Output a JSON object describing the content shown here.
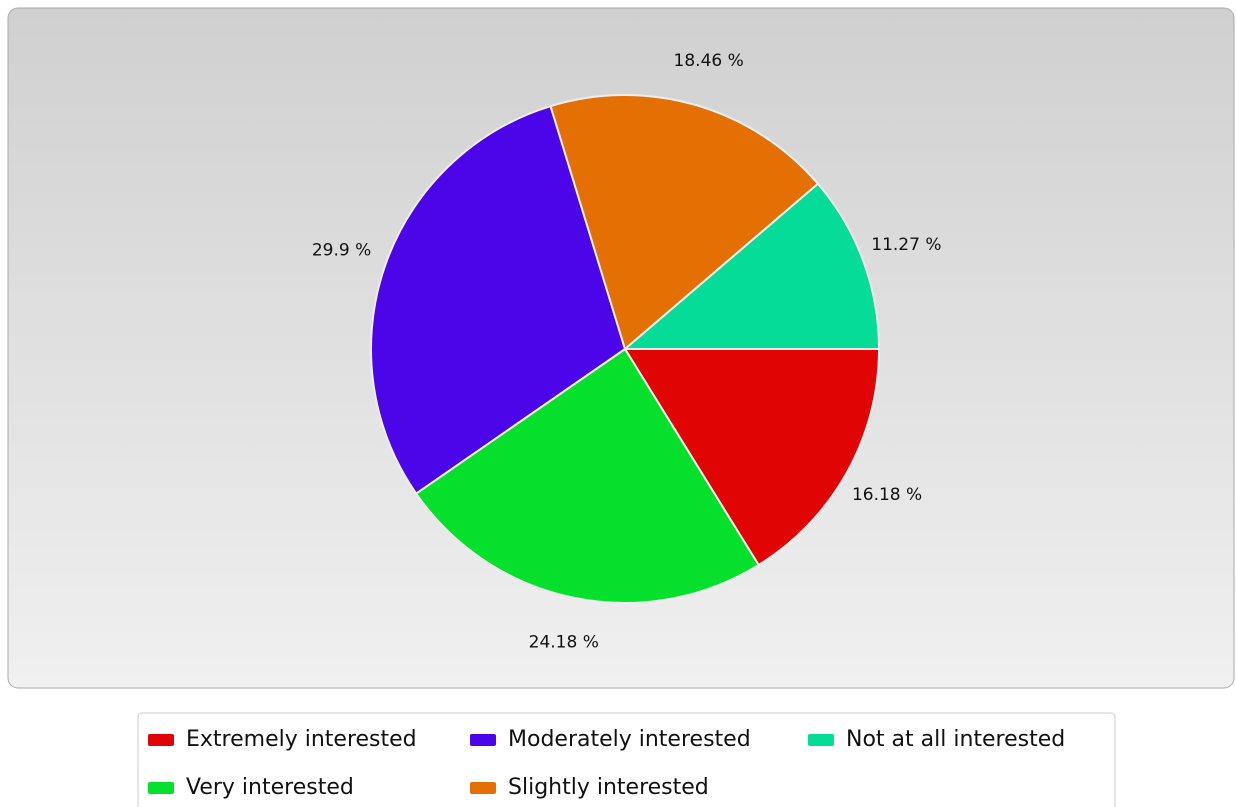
{
  "chart_data": {
    "type": "pie",
    "categories": [
      "Extremely interested",
      "Very interested",
      "Moderately interested",
      "Slightly interested",
      "Not at all interested"
    ],
    "values": [
      16.18,
      24.18,
      29.9,
      18.46,
      11.27
    ],
    "value_labels": [
      "16.18 %",
      "24.18 %",
      "29.9 %",
      "18.46 %",
      "11.27 %"
    ],
    "colors": [
      "#e00404",
      "#04e02c",
      "#4c04e8",
      "#e47004",
      "#04dc98"
    ],
    "legend": "bottom"
  }
}
